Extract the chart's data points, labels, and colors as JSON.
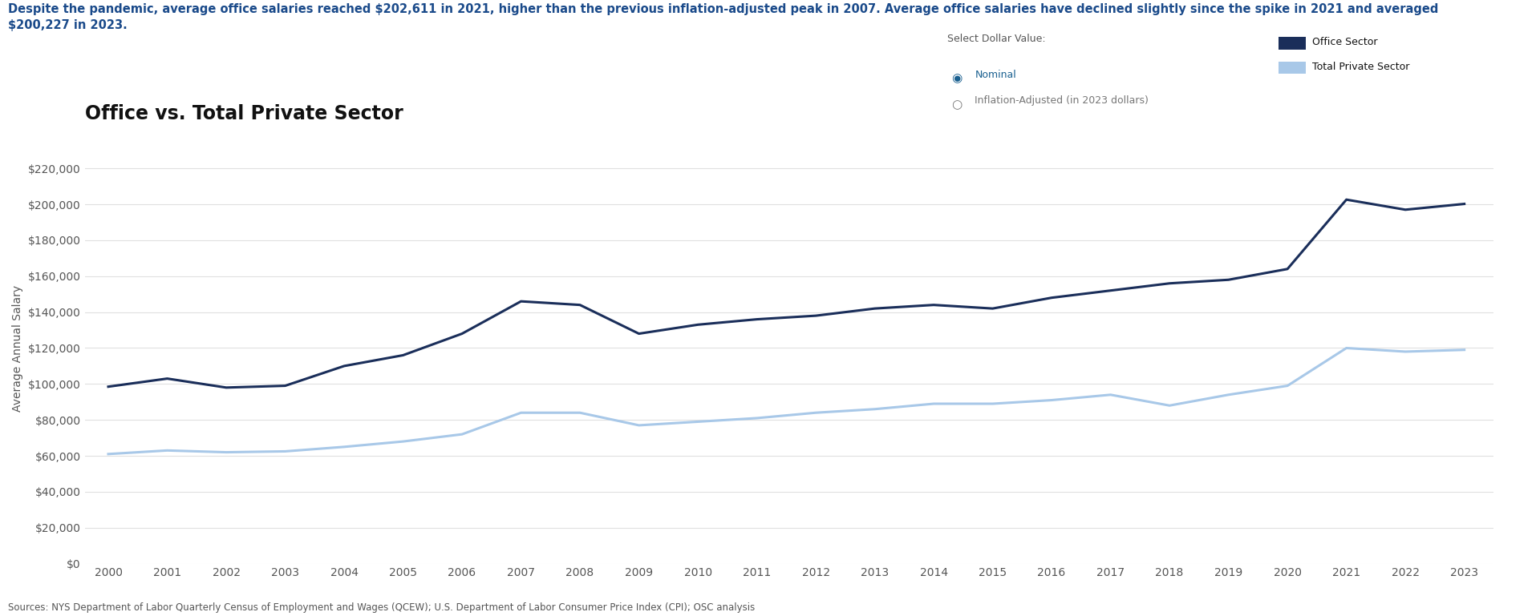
{
  "title": "Office vs. Total Private Sector",
  "subtitle_line1": "Despite the pandemic, average office salaries reached $202,611 in 2021, higher than the previous inflation-adjusted peak in 2007. Average office salaries have declined slightly since the spike in 2021 and averaged",
  "subtitle_line2": "$200,227 in 2023.",
  "ylabel": "Average Annual Salary",
  "background_color": "#ffffff",
  "years": [
    2000,
    2001,
    2002,
    2003,
    2004,
    2005,
    2006,
    2007,
    2008,
    2009,
    2010,
    2011,
    2012,
    2013,
    2014,
    2015,
    2016,
    2017,
    2018,
    2019,
    2020,
    2021,
    2022,
    2023
  ],
  "office_sector": [
    98500,
    103000,
    98000,
    99000,
    110000,
    116000,
    128000,
    146000,
    144000,
    128000,
    133000,
    136000,
    138000,
    142000,
    144000,
    142000,
    148000,
    152000,
    156000,
    158000,
    164000,
    202611,
    197000,
    200227
  ],
  "total_private": [
    61000,
    63000,
    62000,
    62500,
    65000,
    68000,
    72000,
    84000,
    84000,
    77000,
    79000,
    81000,
    84000,
    86000,
    89000,
    89000,
    91000,
    94000,
    88000,
    94000,
    99000,
    120000,
    118000,
    119000
  ],
  "office_color": "#1a2e5a",
  "private_color": "#a8c8e8",
  "title_fontsize": 17,
  "subtitle_fontsize": 10.5,
  "ylabel_fontsize": 10,
  "tick_fontsize": 10,
  "ylim": [
    0,
    240000
  ],
  "yticks": [
    0,
    20000,
    40000,
    60000,
    80000,
    100000,
    120000,
    140000,
    160000,
    180000,
    200000,
    220000
  ],
  "footer": "Sources: NYS Department of Labor Quarterly Census of Employment and Wages (QCEW); U.S. Department of Labor Consumer Price Index (CPI); OSC analysis",
  "select_label": "Select Dollar Value:",
  "radio_nominal": "Nominal",
  "radio_inflation": "Inflation-Adjusted (in 2023 dollars)",
  "legend_office": "Office Sector",
  "legend_private": "Total Private Sector",
  "subtitle_color": "#1a4a8a",
  "title_color": "#111111",
  "tick_color": "#555555",
  "grid_color": "#e0e0e0",
  "footer_color": "#555555",
  "select_color": "#555555",
  "nominal_color": "#1a6090",
  "inflation_color": "#777777"
}
